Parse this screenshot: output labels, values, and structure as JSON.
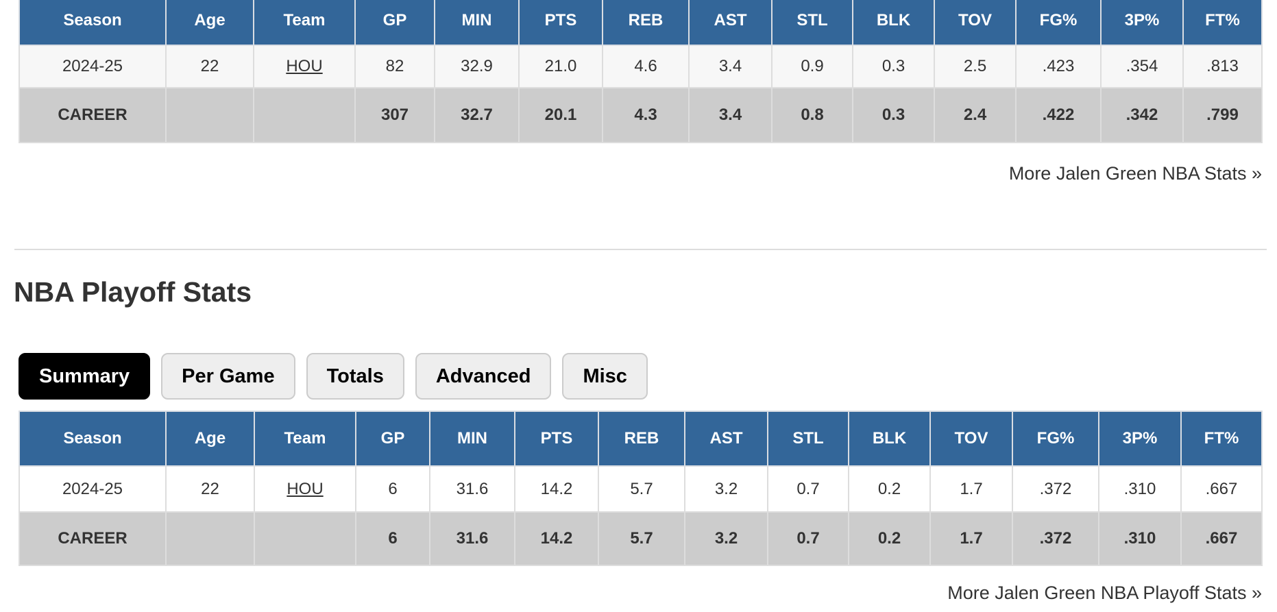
{
  "regular_season": {
    "columns": [
      "Season",
      "Age",
      "Team",
      "GP",
      "MIN",
      "PTS",
      "REB",
      "AST",
      "STL",
      "BLK",
      "TOV",
      "FG%",
      "3P%",
      "FT%"
    ],
    "season_row": {
      "season": "2024-25",
      "age": "22",
      "team": "HOU",
      "gp": "82",
      "min": "32.9",
      "pts": "21.0",
      "reb": "4.6",
      "ast": "3.4",
      "stl": "0.9",
      "blk": "0.3",
      "tov": "2.5",
      "fg": ".423",
      "tp": ".354",
      "ft": ".813"
    },
    "career_row": {
      "label": "CAREER",
      "age": "",
      "team": "",
      "gp": "307",
      "min": "32.7",
      "pts": "20.1",
      "reb": "4.3",
      "ast": "3.4",
      "stl": "0.8",
      "blk": "0.3",
      "tov": "2.4",
      "fg": ".422",
      "tp": ".342",
      "ft": ".799"
    },
    "more_link": "More Jalen Green NBA Stats »"
  },
  "playoffs": {
    "title": "NBA Playoff Stats",
    "tabs": [
      "Summary",
      "Per Game",
      "Totals",
      "Advanced",
      "Misc"
    ],
    "active_tab": "Summary",
    "columns": [
      "Season",
      "Age",
      "Team",
      "GP",
      "MIN",
      "PTS",
      "REB",
      "AST",
      "STL",
      "BLK",
      "TOV",
      "FG%",
      "3P%",
      "FT%"
    ],
    "season_row": {
      "season": "2024-25",
      "age": "22",
      "team": "HOU",
      "gp": "6",
      "min": "31.6",
      "pts": "14.2",
      "reb": "5.7",
      "ast": "3.2",
      "stl": "0.7",
      "blk": "0.2",
      "tov": "1.7",
      "fg": ".372",
      "tp": ".310",
      "ft": ".667"
    },
    "career_row": {
      "label": "CAREER",
      "age": "",
      "team": "",
      "gp": "6",
      "min": "31.6",
      "pts": "14.2",
      "reb": "5.7",
      "ast": "3.2",
      "stl": "0.7",
      "blk": "0.2",
      "tov": "1.7",
      "fg": ".372",
      "tp": ".310",
      "ft": ".667"
    },
    "more_link": "More Jalen Green NBA Playoff Stats »"
  },
  "colors": {
    "header_bg": "#336699",
    "career_bg": "#cccccc",
    "active_tab_bg": "#000000",
    "tab_bg": "#eeeeee"
  }
}
